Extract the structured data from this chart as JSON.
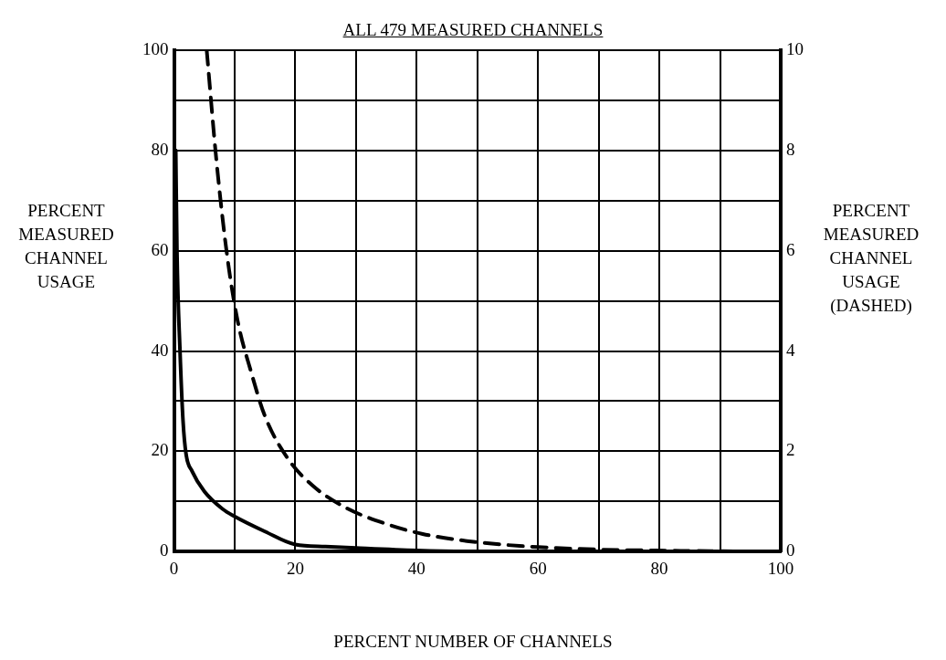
{
  "chart_data": {
    "type": "line",
    "title": "ALL 479 MEASURED CHANNELS",
    "xlabel": "PERCENT NUMBER OF CHANNELS",
    "ylabel": "PERCENT MEASURED CHANNEL USAGE",
    "y2label": "PERCENT MEASURED CHANNEL USAGE (DASHED)",
    "xlim": [
      0,
      100
    ],
    "ylim": [
      0,
      100
    ],
    "y2lim": [
      0,
      10
    ],
    "xticks": [
      0,
      {
        "value": 10,
        "label": null
      },
      20,
      {
        "value": 30,
        "label": null
      },
      40,
      {
        "value": 50,
        "label": null
      },
      60,
      {
        "value": 70,
        "label": null
      },
      80,
      {
        "value": 90,
        "label": null
      },
      100
    ],
    "yticks": [
      0,
      {
        "value": 10,
        "label": null
      },
      20,
      {
        "value": 30,
        "label": null
      },
      40,
      {
        "value": 50,
        "label": null
      },
      60,
      {
        "value": 70,
        "label": null
      },
      80,
      {
        "value": 90,
        "label": null
      },
      100
    ],
    "y2ticks": [
      0,
      2,
      4,
      6,
      8,
      10
    ],
    "grid": true,
    "legend": false,
    "marker": "none",
    "series": [
      {
        "color": "#000000",
        "line_style": "solid",
        "x": [
          0.3,
          0.5,
          1,
          1.5,
          2,
          3,
          5,
          8,
          10,
          15,
          20,
          25,
          30,
          40,
          50,
          70,
          100
        ],
        "values": [
          80,
          60,
          40,
          26,
          19.4,
          16,
          12,
          8.5,
          7,
          4,
          1.4,
          1,
          0.7,
          0.2,
          0,
          0,
          0
        ]
      },
      {
        "color": "#000000",
        "line_style": "dashed",
        "axis": "y2",
        "x": [
          5.4,
          7,
          8.8,
          10.5,
          12.7,
          15,
          18.8,
          23,
          28.4,
          35,
          41,
          48.3,
          55,
          60,
          70,
          80,
          95
        ],
        "values": [
          10,
          7.8,
          5.87,
          4.6,
          3.59,
          2.7,
          1.85,
          1.3,
          0.87,
          0.55,
          0.35,
          0.21,
          0.13,
          0.09,
          0.04,
          0.02,
          0
        ]
      }
    ]
  }
}
